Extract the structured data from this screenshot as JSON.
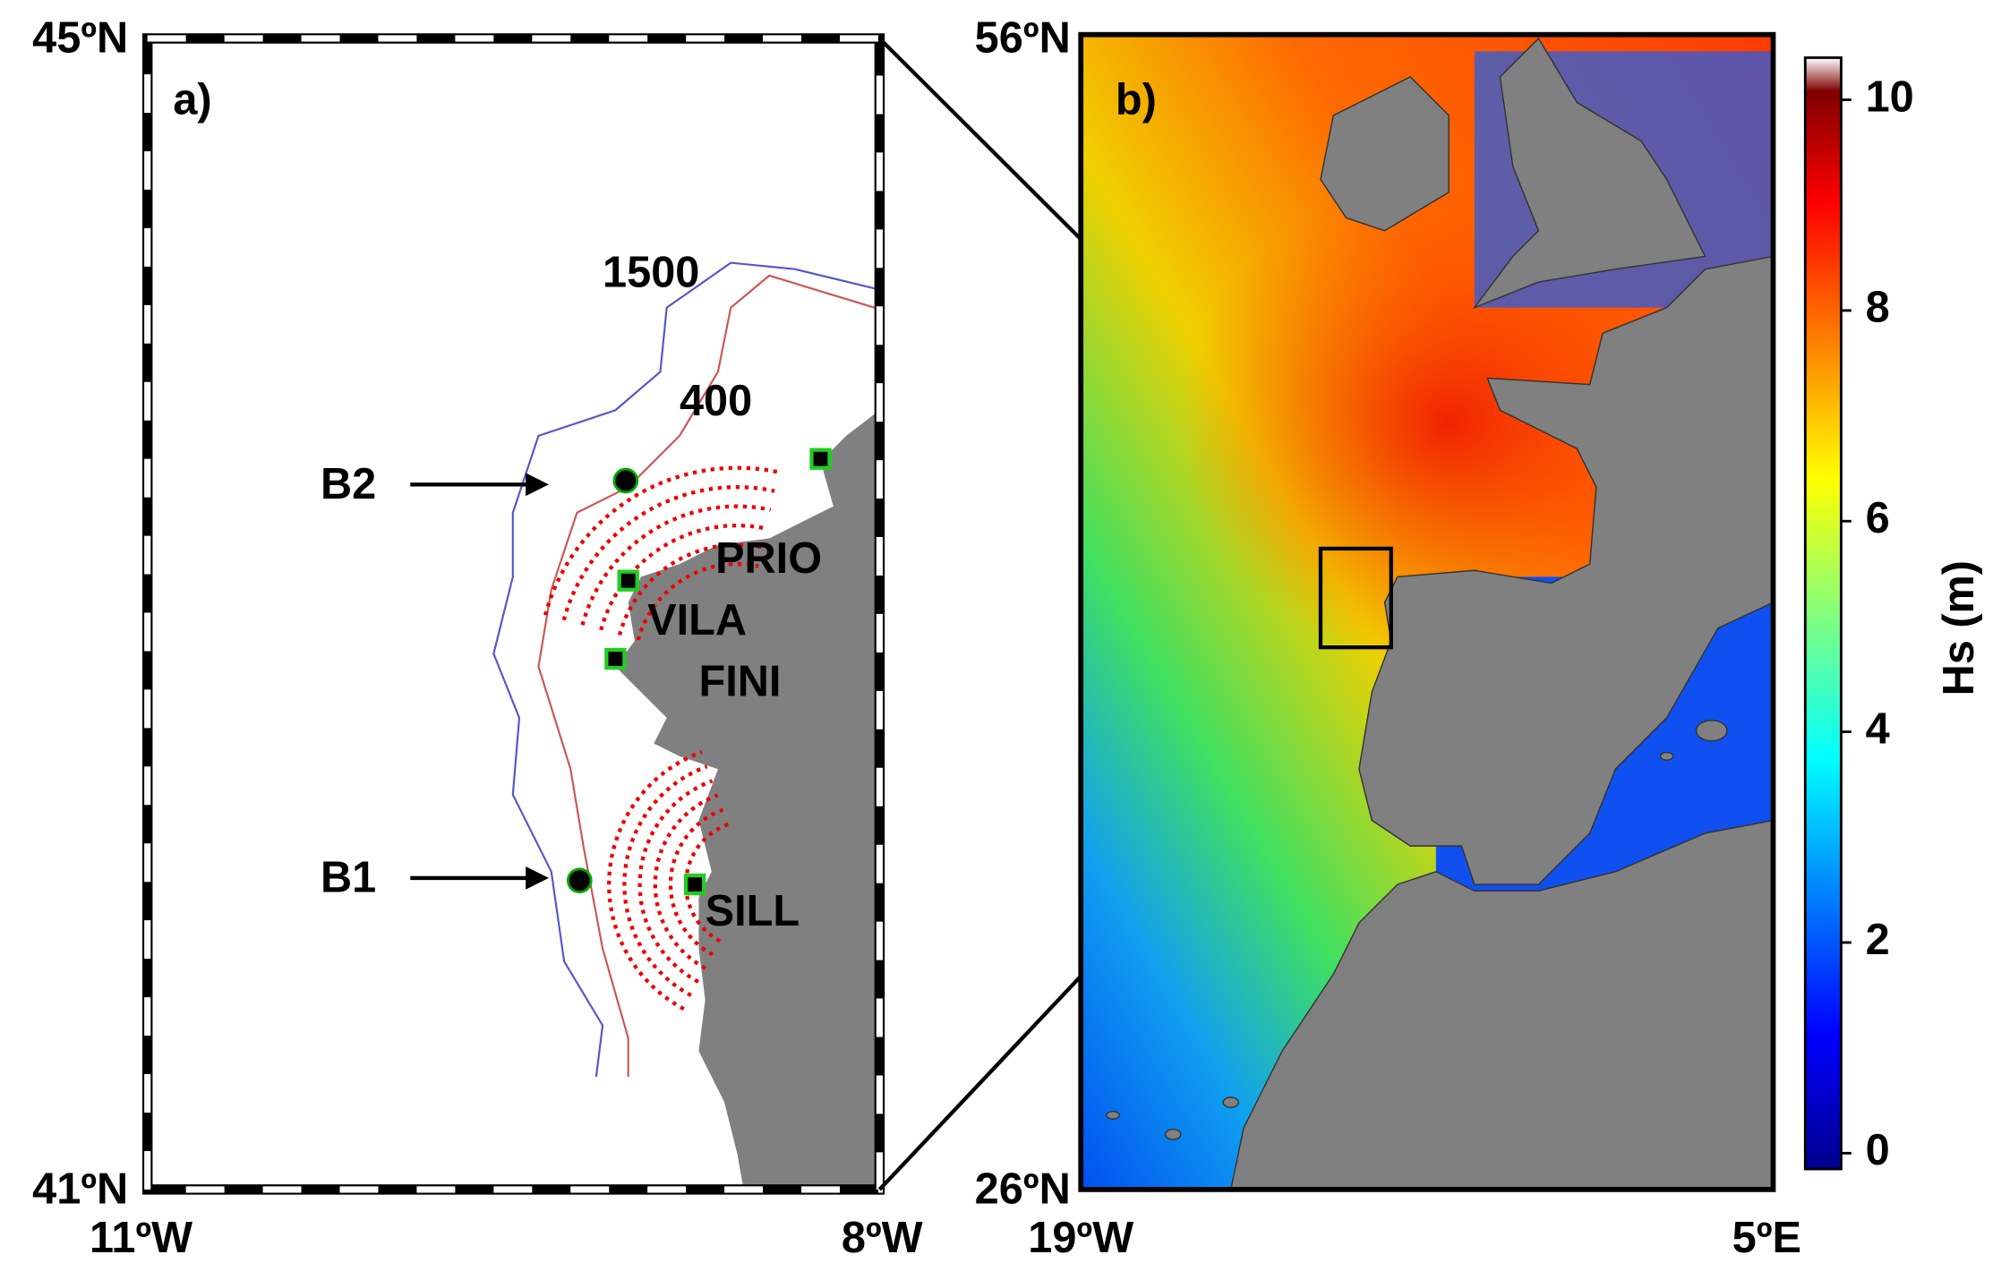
{
  "panel_a": {
    "label": "a)",
    "lat_top": "45ºN",
    "lat_bottom": "41ºN",
    "lon_left": "11ºW",
    "lon_right": "8ºW",
    "isobaths": [
      "1500",
      "400"
    ],
    "buoys": [
      "B2",
      "B1"
    ],
    "stations": [
      "PRIO",
      "VILA",
      "FINI",
      "SILL"
    ]
  },
  "panel_b": {
    "label": "b)",
    "lat_top": "56ºN",
    "lat_bottom": "26ºN",
    "lon_left": "19ºW",
    "lon_right": "5ºE"
  },
  "colorbar": {
    "label": "Hs (m)",
    "lim": [
      -0.15,
      10.4
    ],
    "ticks": [
      0,
      2,
      4,
      6,
      8,
      10
    ]
  }
}
